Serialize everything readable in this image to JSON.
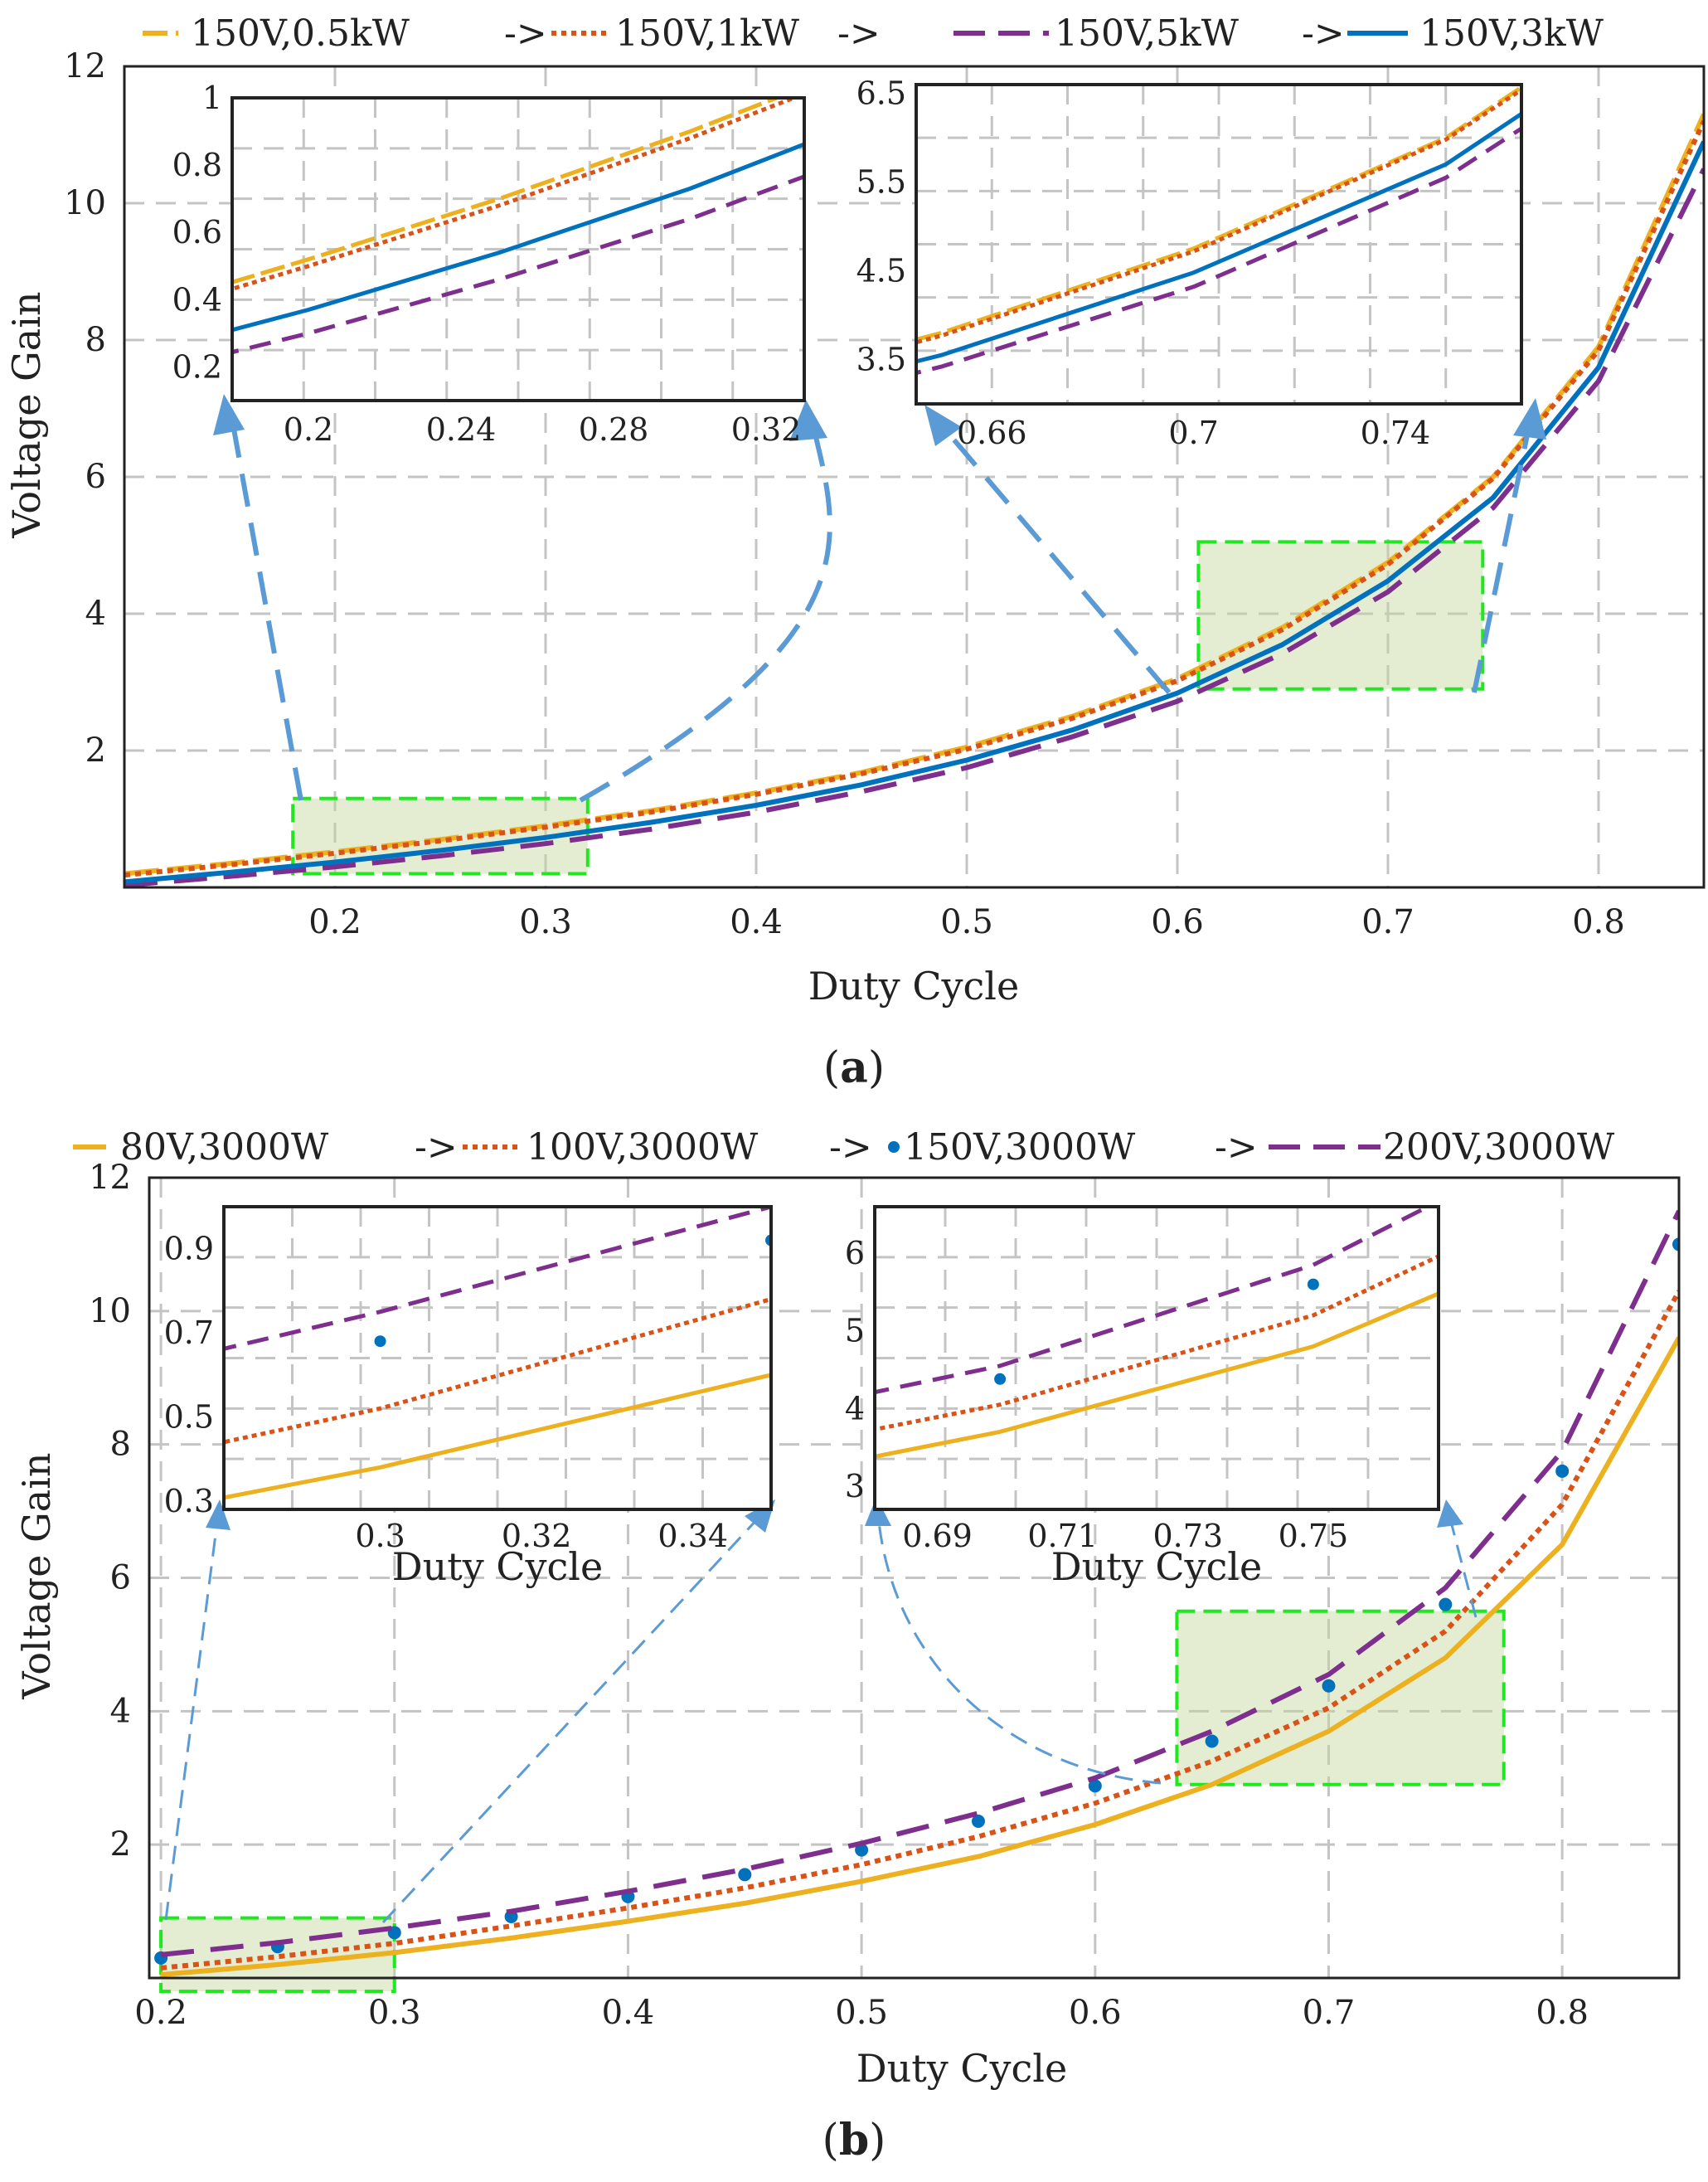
{
  "chart_data": [
    {
      "type": "line",
      "caption_label": "a",
      "title": "",
      "xlabel": "Duty Cycle",
      "ylabel": "Voltage Gain",
      "xlim": [
        0.1,
        0.85
      ],
      "ylim": [
        0,
        12
      ],
      "xticks": [
        0.2,
        0.3,
        0.4,
        0.5,
        0.6,
        0.7,
        0.8
      ],
      "yticks": [
        2,
        4,
        6,
        8,
        10,
        12
      ],
      "legend_labels": [
        "150V,0.5kW",
        "->",
        "150V,1kW",
        "->",
        "150V,5kW",
        "->",
        "150V,3kW"
      ],
      "x": [
        0.1,
        0.15,
        0.2,
        0.25,
        0.3,
        0.35,
        0.4,
        0.45,
        0.5,
        0.55,
        0.6,
        0.65,
        0.7,
        0.75,
        0.8,
        0.85
      ],
      "series": [
        {
          "name": "150V,0.5kW",
          "color": "#EDB120",
          "dash": "long",
          "values": [
            0.2,
            0.35,
            0.52,
            0.7,
            0.9,
            1.12,
            1.38,
            1.68,
            2.05,
            2.5,
            3.05,
            3.8,
            4.75,
            6.0,
            7.9,
            11.3
          ]
        },
        {
          "name": "150V,1kW",
          "color": "#D95319",
          "dash": "dot",
          "values": [
            0.18,
            0.33,
            0.5,
            0.68,
            0.88,
            1.1,
            1.36,
            1.66,
            2.02,
            2.47,
            3.02,
            3.77,
            4.72,
            5.98,
            7.85,
            11.2
          ]
        },
        {
          "name": "150V,5kW",
          "color": "#7E2F8E",
          "dash": "dash",
          "values": [
            0.03,
            0.16,
            0.3,
            0.46,
            0.64,
            0.85,
            1.1,
            1.4,
            1.75,
            2.2,
            2.72,
            3.42,
            4.32,
            5.55,
            7.4,
            10.5
          ]
        },
        {
          "name": "150V,3kW",
          "color": "#0072BD",
          "dash": "solid",
          "values": [
            0.08,
            0.22,
            0.37,
            0.54,
            0.73,
            0.95,
            1.2,
            1.5,
            1.86,
            2.3,
            2.84,
            3.55,
            4.48,
            5.7,
            7.6,
            10.9
          ]
        }
      ],
      "insets": [
        {
          "xlim": [
            0.18,
            0.33
          ],
          "ylim": [
            0.1,
            1.0
          ],
          "xticks": [
            0.2,
            0.24,
            0.28,
            0.32
          ],
          "yticks": [
            0.2,
            0.4,
            0.6,
            0.8,
            1
          ],
          "xlabel": ""
        },
        {
          "xlim": [
            0.645,
            0.765
          ],
          "ylim": [
            3.0,
            6.6
          ],
          "xticks": [
            0.66,
            0.7,
            0.74
          ],
          "yticks": [
            3.5,
            4.5,
            5.5,
            6.5
          ],
          "xlabel": ""
        }
      ],
      "zoom_boxes": [
        {
          "x": [
            0.18,
            0.32
          ],
          "y": [
            0.2,
            1.3
          ]
        },
        {
          "x": [
            0.61,
            0.745
          ],
          "y": [
            2.9,
            5.05
          ]
        }
      ]
    },
    {
      "type": "line",
      "caption_label": "b",
      "title": "",
      "xlabel": "Duty Cycle",
      "ylabel": "Voltage Gain",
      "xlim": [
        0.195,
        0.85
      ],
      "ylim": [
        0,
        12
      ],
      "xticks": [
        0.2,
        0.3,
        0.4,
        0.5,
        0.6,
        0.7,
        0.8
      ],
      "yticks": [
        2,
        4,
        6,
        8,
        10,
        12
      ],
      "legend_labels": [
        "80V,3000W",
        "->",
        "100V,3000W",
        "->",
        "150V,3000W",
        "->",
        "200V,3000W"
      ],
      "x": [
        0.2,
        0.25,
        0.3,
        0.35,
        0.4,
        0.45,
        0.5,
        0.55,
        0.6,
        0.65,
        0.7,
        0.75,
        0.8,
        0.85
      ],
      "series": [
        {
          "name": "80V,3000W",
          "color": "#EDB120",
          "dash": "solid",
          "values": [
            0.05,
            0.2,
            0.38,
            0.6,
            0.85,
            1.12,
            1.45,
            1.82,
            2.3,
            2.9,
            3.7,
            4.8,
            6.5,
            9.6
          ]
        },
        {
          "name": "100V,3000W",
          "color": "#D95319",
          "dash": "dot",
          "values": [
            0.15,
            0.32,
            0.52,
            0.78,
            1.05,
            1.35,
            1.7,
            2.12,
            2.62,
            3.25,
            4.05,
            5.2,
            7.1,
            10.3
          ]
        },
        {
          "name": "150V,3000W",
          "color": "#0072BD",
          "dash": "markers",
          "values": [
            0.3,
            0.47,
            0.68,
            0.92,
            1.22,
            1.55,
            1.92,
            2.35,
            2.88,
            3.55,
            4.38,
            5.6,
            7.6,
            11.0
          ]
        },
        {
          "name": "200V,3000W",
          "color": "#7E2F8E",
          "dash": "dash",
          "values": [
            0.35,
            0.53,
            0.75,
            1.0,
            1.3,
            1.63,
            2.02,
            2.47,
            3.0,
            3.7,
            4.55,
            5.85,
            7.9,
            11.5
          ]
        }
      ],
      "insets": [
        {
          "xlim": [
            0.28,
            0.35
          ],
          "ylim": [
            0.28,
            1.0
          ],
          "xticks": [
            0.3,
            0.32,
            0.34
          ],
          "yticks": [
            0.3,
            0.5,
            0.7,
            0.9
          ],
          "xlabel": "Duty Cycle"
        },
        {
          "xlim": [
            0.68,
            0.77
          ],
          "ylim": [
            2.7,
            6.6
          ],
          "xticks": [
            0.69,
            0.71,
            0.73,
            0.75
          ],
          "yticks": [
            3,
            4,
            5,
            6
          ],
          "xlabel": "Duty Cycle"
        }
      ],
      "zoom_boxes": [
        {
          "x": [
            0.2,
            0.3
          ],
          "y": [
            -0.2,
            0.9
          ]
        },
        {
          "x": [
            0.635,
            0.775
          ],
          "y": [
            2.9,
            5.5
          ]
        }
      ]
    }
  ]
}
